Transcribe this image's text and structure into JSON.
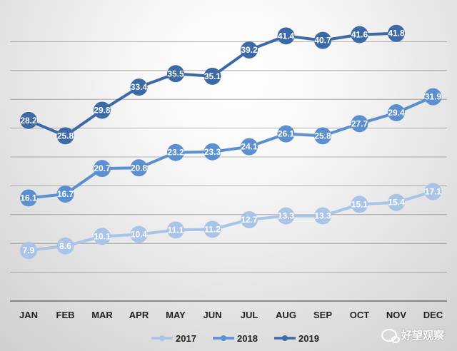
{
  "chart_data": {
    "type": "line",
    "categories": [
      "JAN",
      "FEB",
      "MAR",
      "APR",
      "MAY",
      "JUN",
      "JUL",
      "AUG",
      "SEP",
      "OCT",
      "NOV",
      "DEC"
    ],
    "series": [
      {
        "name": "2017",
        "color": "#a9c4e6",
        "values": [
          7.9,
          8.6,
          10.1,
          10.4,
          11.1,
          11.2,
          12.7,
          13.3,
          13.3,
          15.1,
          15.4,
          17.1
        ]
      },
      {
        "name": "2018",
        "color": "#5b8fcf",
        "values": [
          16.1,
          16.7,
          20.7,
          20.8,
          23.2,
          23.3,
          24.1,
          26.1,
          25.8,
          27.7,
          29.4,
          31.9
        ]
      },
      {
        "name": "2019",
        "color": "#3c6aa6",
        "values": [
          28.2,
          25.8,
          29.8,
          33.4,
          35.5,
          35.1,
          39.2,
          41.4,
          40.7,
          41.6,
          41.8,
          null
        ]
      }
    ],
    "ylim": [
      0,
      45
    ],
    "grid": "horizontal",
    "legend_position": "bottom",
    "title": "",
    "xlabel": "",
    "ylabel": ""
  },
  "watermark": {
    "text": "好望观察",
    "icon": "chat-bubble-icon"
  }
}
